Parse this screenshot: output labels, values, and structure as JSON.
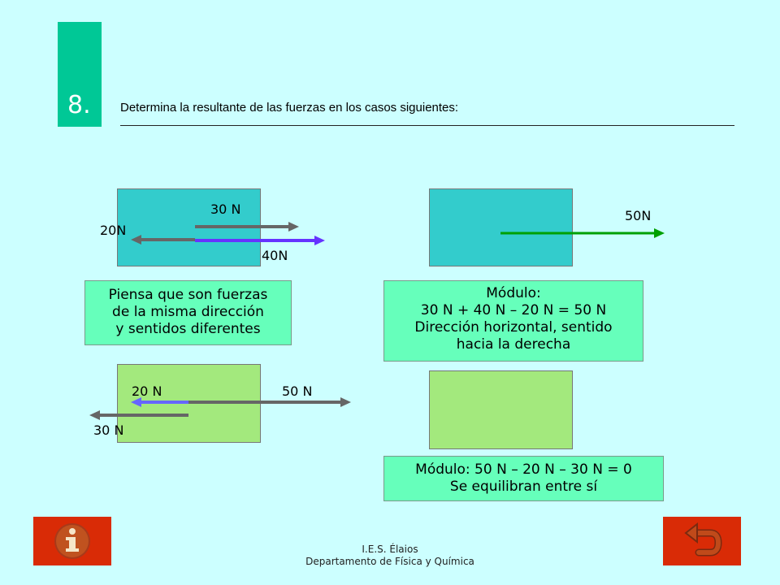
{
  "slide": {
    "number": "8.",
    "title": "Determina  la resultante de las fuerzas en los casos siguientes:"
  },
  "case1": {
    "force_top": "30 N",
    "force_left": "20N",
    "force_bottom": "40N",
    "hint_lines": [
      "Piensa que son fuerzas",
      "de la misma dirección",
      "y sentidos diferentes"
    ]
  },
  "result1": {
    "force": "50N",
    "answer_lines": [
      "Módulo:",
      "30 N + 40 N – 20 N = 50 N",
      "Dirección horizontal, sentido",
      "hacia la derecha"
    ]
  },
  "case2": {
    "force_a": "20 N",
    "force_b": "50 N",
    "force_c": "30 N"
  },
  "result2": {
    "answer_lines": [
      "Módulo: 50 N – 20 N – 30 N = 0",
      "Se equilibran entre sí"
    ]
  },
  "footer": {
    "line1": "I.E.S. Élaios",
    "line2": "Departamento de Física y Química"
  },
  "nav": {
    "info_icon": "info-icon",
    "return_icon": "return-arrow-icon"
  },
  "colors": {
    "background": "#ccffff",
    "number_block": "#00c896",
    "teal_body": "#33cccc",
    "green_body": "#a3e97d",
    "answer_box": "#66ffbb",
    "button": "#d92b06",
    "arrow_gray": "#666666",
    "arrow_purple": "#6633ff",
    "arrow_green": "#00a000",
    "arrow_blue": "#6666ff"
  }
}
